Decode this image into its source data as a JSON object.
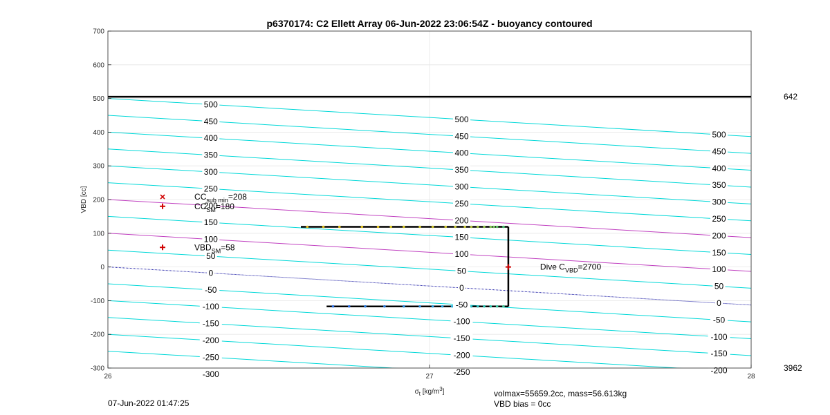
{
  "chart_data": {
    "type": "line",
    "title": "p6370174: C2 Ellett Array 06-Jun-2022 23:06:54Z - buoyancy contoured",
    "xlabel": {
      "main": "σ",
      "sub": "t",
      "units": " [kg/m",
      "sup": "3",
      "close": "]"
    },
    "ylabel": "VBD [cc]",
    "xlim": [
      26,
      28
    ],
    "ylim": [
      -300,
      700
    ],
    "x_ticks": [
      {
        "v": 26,
        "label": "26"
      },
      {
        "v": 27,
        "label": "27"
      },
      {
        "v": 28,
        "label": "28"
      }
    ],
    "y_ticks": [
      {
        "v": -300,
        "label": "-300"
      },
      {
        "v": -200,
        "label": "-200"
      },
      {
        "v": -100,
        "label": "-100"
      },
      {
        "v": 0,
        "label": "0"
      },
      {
        "v": 100,
        "label": "100"
      },
      {
        "v": 200,
        "label": "200"
      },
      {
        "v": 300,
        "label": "300"
      },
      {
        "v": 400,
        "label": "400"
      },
      {
        "v": 500,
        "label": "500"
      },
      {
        "v": 600,
        "label": "600"
      },
      {
        "v": 700,
        "label": "700"
      }
    ],
    "grid": true,
    "contour_slope_cc_per_kgm3": -56.5,
    "contours": [
      {
        "value": -300,
        "label": "-300",
        "color": "#00d8d8"
      },
      {
        "value": -250,
        "label": "-250",
        "color": "#00d8d8"
      },
      {
        "value": -200,
        "label": "-200",
        "color": "#00d8d8"
      },
      {
        "value": -150,
        "label": "-150",
        "color": "#00d8d8"
      },
      {
        "value": -100,
        "label": "-100",
        "color": "#00d8d8"
      },
      {
        "value": -50,
        "label": "-50",
        "color": "#00d8d8"
      },
      {
        "value": 0,
        "label": "0",
        "color": "#1010a0",
        "dotted": true
      },
      {
        "value": 50,
        "label": "50",
        "color": "#00d8d8"
      },
      {
        "value": 100,
        "label": "100",
        "color": "#c040c0"
      },
      {
        "value": 150,
        "label": "150",
        "color": "#00d8d8"
      },
      {
        "value": 200,
        "label": "200",
        "color": "#c040c0"
      },
      {
        "value": 250,
        "label": "250",
        "color": "#00d8d8"
      },
      {
        "value": 300,
        "label": "300",
        "color": "#00d8d8"
      },
      {
        "value": 350,
        "label": "350",
        "color": "#00d8d8"
      },
      {
        "value": 400,
        "label": "400",
        "color": "#00d8d8"
      },
      {
        "value": 450,
        "label": "450",
        "color": "#00d8d8"
      },
      {
        "value": 500,
        "label": "500",
        "color": "#00d8d8"
      }
    ],
    "contour_label_columns": [
      {
        "x": 26.32,
        "from": -300,
        "to": 500
      },
      {
        "x": 27.1,
        "from": -250,
        "to": 500
      },
      {
        "x": 27.9,
        "from": -200,
        "to": 500
      }
    ],
    "reference_line": {
      "y": 505,
      "color": "#000000"
    },
    "right_labels": [
      {
        "y": 505,
        "text": "642"
      },
      {
        "y": -300,
        "text": "3962"
      }
    ],
    "profile": {
      "color": "#000000",
      "segments": [
        {
          "x": [
            26.6,
            27.245
          ],
          "y": [
            119,
            119
          ]
        },
        {
          "x": [
            27.245,
            27.245
          ],
          "y": [
            119,
            -117
          ]
        },
        {
          "x": [
            27.245,
            26.68
          ],
          "y": [
            -117,
            -117
          ]
        }
      ],
      "upper_points": [
        26.62,
        26.67,
        26.72,
        26.79,
        26.84,
        26.88,
        26.92,
        26.97,
        27.01,
        27.05,
        27.08,
        27.11,
        27.13,
        27.15,
        27.17,
        27.19,
        27.2,
        27.21,
        27.23
      ],
      "upper_colors": [
        "#e0c020",
        "#e0c020",
        "#e0c020",
        "#e0c020",
        "#e0c020",
        "#d8c828",
        "#d8c828",
        "#d0c830",
        "#d0c830",
        "#d0c830",
        "#c8c838",
        "#c8c838",
        "#b8c840",
        "#a8c848",
        "#98c850",
        "#88c858",
        "#78c860",
        "#60c068",
        "#48c070"
      ],
      "lower_points": [
        26.7,
        26.75,
        26.8,
        26.86,
        26.92,
        26.97,
        27.01,
        27.04,
        27.07,
        27.09,
        27.11,
        27.13,
        27.15,
        27.17,
        27.19,
        27.21,
        27.23
      ],
      "lower_colors": [
        "#3070e0",
        "#3070e0",
        "#3080e0",
        "#3080e0",
        "#3090e0",
        "#3090e0",
        "#30a0e0",
        "#30a0e0",
        "#30b0d8",
        "#30b0d8",
        "#30b8d0",
        "#30c0c8",
        "#30c0c0",
        "#30c8b8",
        "#30c8b0",
        "#38c8a0",
        "#40c898"
      ]
    },
    "markers": [
      {
        "x": 26.17,
        "y": 208,
        "symbol": "x",
        "color": "#d00000",
        "label": "CC",
        "sub": "sub min",
        "value": "=208"
      },
      {
        "x": 26.17,
        "y": 180,
        "symbol": "+",
        "color": "#d00000",
        "label": "CC",
        "sub": "SM",
        "value": "=180"
      },
      {
        "x": 26.17,
        "y": 58,
        "symbol": "+",
        "color": "#d00000",
        "label": "VBD",
        "sub": "SM",
        "value": "=58"
      },
      {
        "x": 27.245,
        "y": 0,
        "symbol": "+",
        "color": "#d00000",
        "label": "Dive C",
        "sub": "VBD",
        "value": "=2700"
      }
    ]
  },
  "footer": {
    "date": "07-Jun-2022 01:47:25",
    "volmax": "volmax=55659.2cc, mass=56.613kg",
    "bias": "VBD bias = 0cc"
  }
}
